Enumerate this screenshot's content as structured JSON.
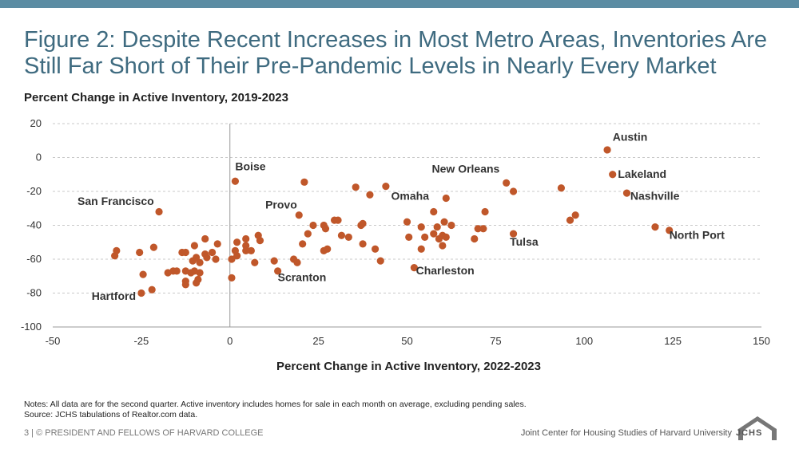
{
  "slide": {
    "title": "Figure 2: Despite Recent Increases in Most Metro Areas, Inventories Are Still Far Short of Their Pre-Pandemic Levels in Nearly Every Market",
    "note_line1": "Notes: All data are for the second quarter. Active inventory includes homes for sale in each month on average, excluding pending sales.",
    "note_line2": "Source: JCHS tabulations of Realtor.com data.",
    "footer_left": "3 | © PRESIDENT AND FELLOWS OF HARVARD COLLEGE",
    "footer_right": "Joint Center for Housing Studies of Harvard University",
    "logo_text": "JCHS"
  },
  "colors": {
    "accent": "#5b8ca3",
    "title": "#3f6b80",
    "point": "#c0572a",
    "grid": "#c8c8c8"
  },
  "chart_data": {
    "type": "scatter",
    "title": "Percent Change in Active Inventory, 2019-2023",
    "xlabel": "Percent Change in Active Inventory, 2022-2023",
    "ylabel": "",
    "xlim": [
      -50,
      150
    ],
    "ylim": [
      -100,
      20
    ],
    "xticks": [
      -50,
      -25,
      0,
      25,
      50,
      75,
      100,
      125,
      150
    ],
    "yticks": [
      -100,
      -80,
      -60,
      -40,
      -20,
      0,
      20
    ],
    "grid": "horizontal dashed",
    "points": [
      [
        106.5,
        4.5
      ],
      [
        108,
        -10
      ],
      [
        112,
        -21
      ],
      [
        120,
        -41
      ],
      [
        124,
        -43
      ],
      [
        97.5,
        -34
      ],
      [
        96,
        -37
      ],
      [
        93.5,
        -18
      ],
      [
        78,
        -15
      ],
      [
        80,
        -20
      ],
      [
        80,
        -45
      ],
      [
        72,
        -32
      ],
      [
        70,
        -42
      ],
      [
        71.5,
        -42
      ],
      [
        69,
        -48
      ],
      [
        61,
        -24
      ],
      [
        57.5,
        -32
      ],
      [
        58.5,
        -41
      ],
      [
        60.5,
        -38
      ],
      [
        61,
        -47
      ],
      [
        62.5,
        -40
      ],
      [
        60,
        -52
      ],
      [
        57.5,
        -45
      ],
      [
        60,
        -46
      ],
      [
        59,
        -48
      ],
      [
        54,
        -41
      ],
      [
        55,
        -47
      ],
      [
        54,
        -54
      ],
      [
        52,
        -65
      ],
      [
        50,
        -38
      ],
      [
        50.5,
        -47
      ],
      [
        44,
        -17
      ],
      [
        39.5,
        -22
      ],
      [
        35.5,
        -17.5
      ],
      [
        37.5,
        -39
      ],
      [
        37,
        -40
      ],
      [
        37.5,
        -51
      ],
      [
        41,
        -54
      ],
      [
        42.5,
        -61
      ],
      [
        33.5,
        -47
      ],
      [
        31.5,
        -46
      ],
      [
        29.5,
        -37
      ],
      [
        30.5,
        -37
      ],
      [
        26.5,
        -40
      ],
      [
        27,
        -42
      ],
      [
        26.5,
        -55
      ],
      [
        27.5,
        -54
      ],
      [
        21,
        -14.5
      ],
      [
        19.5,
        -34
      ],
      [
        23.5,
        -40
      ],
      [
        22,
        -45
      ],
      [
        20.5,
        -51
      ],
      [
        18,
        -60
      ],
      [
        19,
        -62
      ],
      [
        13.5,
        -67
      ],
      [
        12.5,
        -61
      ],
      [
        8,
        -46
      ],
      [
        8.5,
        -49
      ],
      [
        7,
        -62
      ],
      [
        6,
        -55
      ],
      [
        4.5,
        -52
      ],
      [
        4.5,
        -55
      ],
      [
        4.5,
        -48
      ],
      [
        2,
        -50
      ],
      [
        2,
        -58
      ],
      [
        1.5,
        -14
      ],
      [
        1.5,
        -55
      ],
      [
        0.5,
        -60
      ],
      [
        0.5,
        -71
      ],
      [
        -3.5,
        -51
      ],
      [
        -4,
        -60
      ],
      [
        -5,
        -56
      ],
      [
        -6.5,
        -59
      ],
      [
        -7,
        -48
      ],
      [
        -7,
        -57
      ],
      [
        -8.5,
        -62
      ],
      [
        -8.5,
        -68
      ],
      [
        -9,
        -72
      ],
      [
        -9.5,
        -59
      ],
      [
        -10,
        -52
      ],
      [
        -10,
        -67
      ],
      [
        -9.5,
        -74
      ],
      [
        -10.5,
        -61
      ],
      [
        -11,
        -68
      ],
      [
        -12.5,
        -56
      ],
      [
        -12.5,
        -67
      ],
      [
        -12.5,
        -73
      ],
      [
        -12.5,
        -75
      ],
      [
        -13.5,
        -56
      ],
      [
        -15,
        -67
      ],
      [
        -16,
        -67
      ],
      [
        -17.5,
        -68
      ],
      [
        -20,
        -32
      ],
      [
        -21.5,
        -53
      ],
      [
        -22,
        -78
      ],
      [
        -24.5,
        -69
      ],
      [
        -25,
        -80
      ],
      [
        -25.5,
        -56
      ],
      [
        -32.5,
        -58
      ],
      [
        -32,
        -55
      ]
    ],
    "annotations": [
      {
        "label": "Austin",
        "x": 108,
        "y": 10
      },
      {
        "label": "Lakeland",
        "x": 109.5,
        "y": -12
      },
      {
        "label": "Nashville",
        "x": 113,
        "y": -25
      },
      {
        "label": "North Port",
        "x": 124,
        "y": -48
      },
      {
        "label": "Tulsa",
        "x": 79,
        "y": -52
      },
      {
        "label": "New Orleans",
        "x": 57,
        "y": -9
      },
      {
        "label": "Omaha",
        "x": 45.5,
        "y": -25
      },
      {
        "label": "Charleston",
        "x": 52.5,
        "y": -69
      },
      {
        "label": "Boise",
        "x": 1.5,
        "y": -7.5
      },
      {
        "label": "Provo",
        "x": 10,
        "y": -30
      },
      {
        "label": "Scranton",
        "x": 13.5,
        "y": -73
      },
      {
        "label": "San Francisco",
        "x": -43,
        "y": -28
      },
      {
        "label": "Hartford",
        "x": -39,
        "y": -84
      }
    ]
  }
}
